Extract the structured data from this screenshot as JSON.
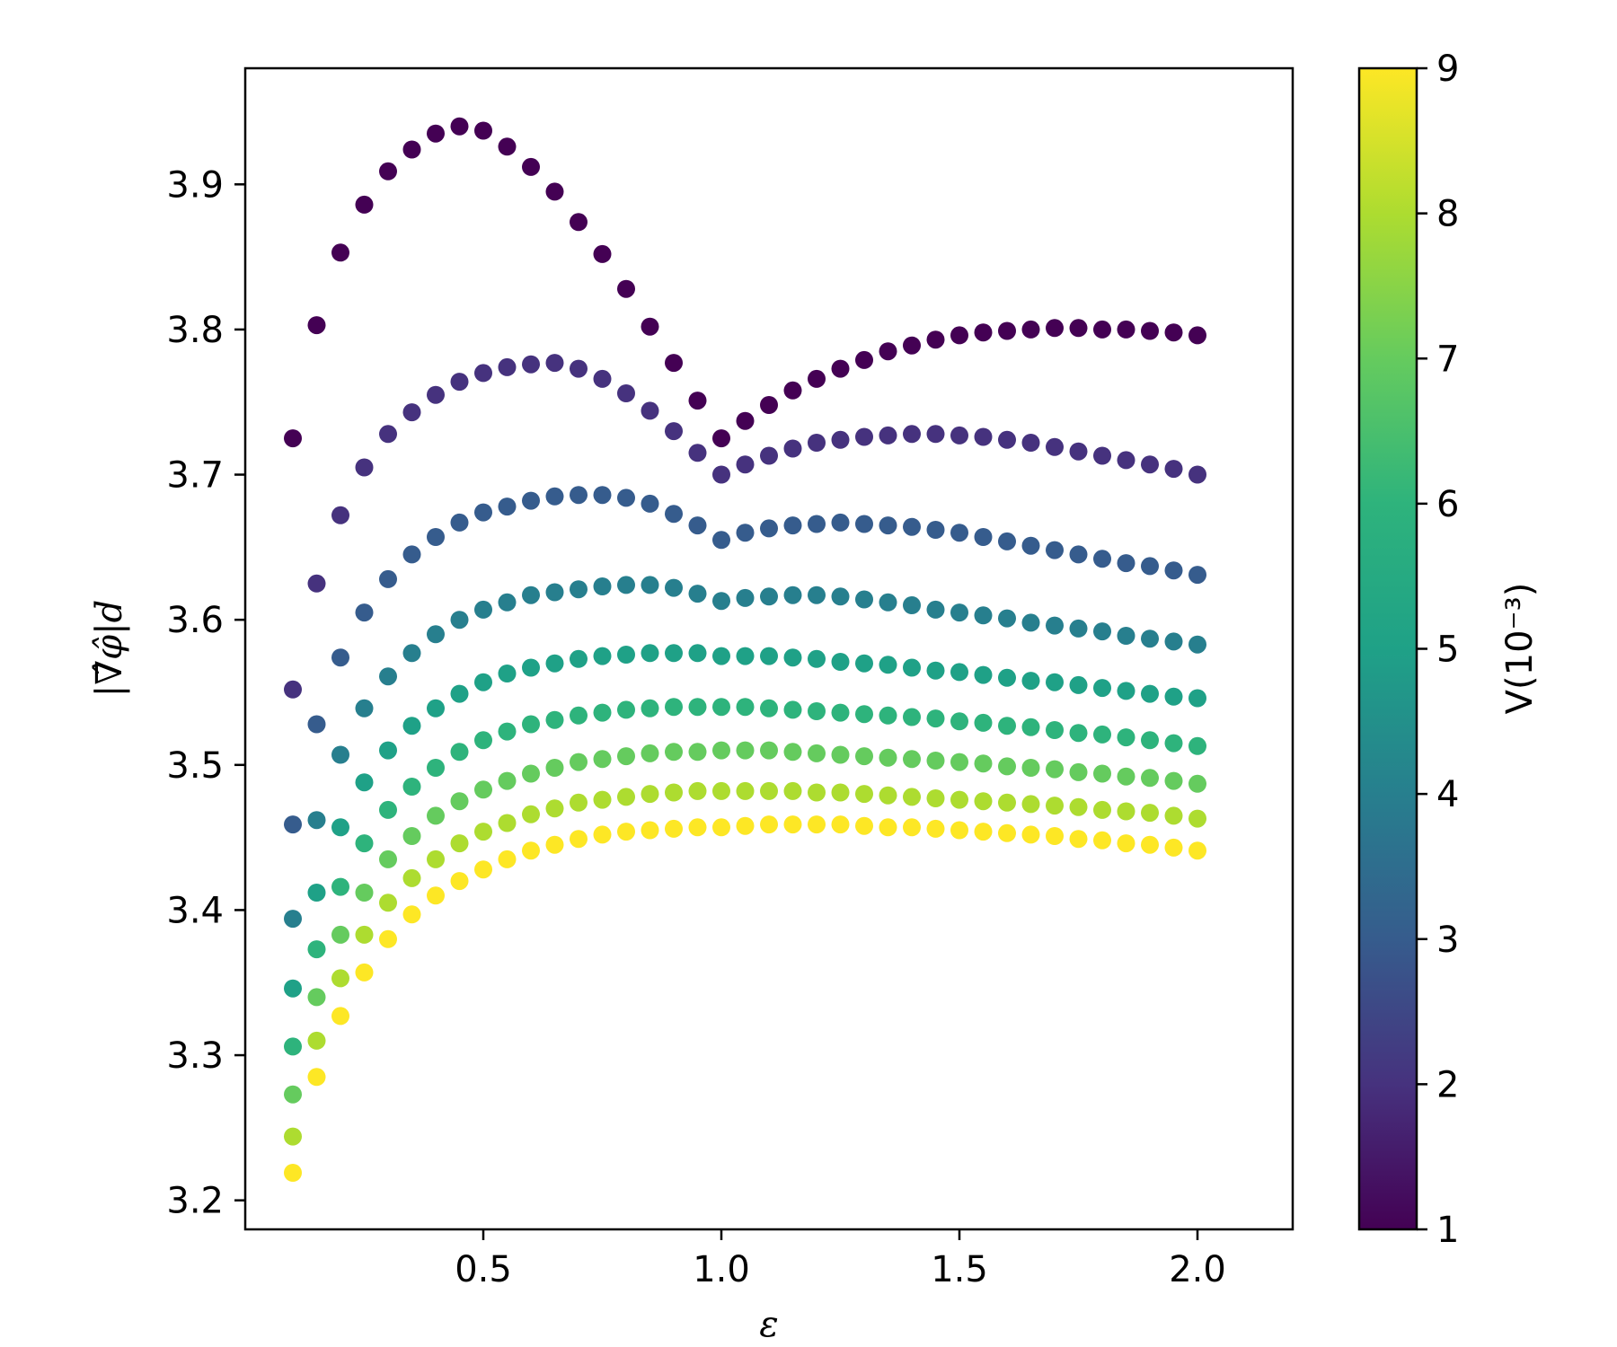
{
  "chart_data": {
    "type": "scatter",
    "xlabel": "ε",
    "ylabel": "|∇̂φ̂|d",
    "xlim": [
      0.0,
      2.2
    ],
    "ylim": [
      3.18,
      3.98
    ],
    "xticks": [
      "0.5",
      "1.0",
      "1.5",
      "2.0"
    ],
    "xtick_values": [
      0.5,
      1.0,
      1.5,
      2.0
    ],
    "yticks": [
      "3.2",
      "3.3",
      "3.4",
      "3.5",
      "3.6",
      "3.7",
      "3.8",
      "3.9"
    ],
    "ytick_values": [
      3.2,
      3.3,
      3.4,
      3.5,
      3.6,
      3.7,
      3.8,
      3.9
    ],
    "colorbar": {
      "label": "V(10⁻³)",
      "range": [
        1,
        9
      ],
      "ticks": [
        "1",
        "2",
        "3",
        "4",
        "5",
        "6",
        "7",
        "8",
        "9"
      ],
      "colormap": "viridis"
    },
    "x": [
      0.1,
      0.15,
      0.2,
      0.25,
      0.3,
      0.35,
      0.4,
      0.45,
      0.5,
      0.55,
      0.6,
      0.65,
      0.7,
      0.75,
      0.8,
      0.85,
      0.9,
      0.95,
      1.0,
      1.05,
      1.1,
      1.15,
      1.2,
      1.25,
      1.3,
      1.35,
      1.4,
      1.45,
      1.5,
      1.55,
      1.6,
      1.65,
      1.7,
      1.75,
      1.8,
      1.85,
      1.9,
      1.95,
      2.0
    ],
    "series": [
      {
        "V": 1,
        "color": "#440154",
        "values": [
          3.725,
          3.803,
          3.853,
          3.886,
          3.909,
          3.924,
          3.935,
          3.94,
          3.937,
          3.926,
          3.912,
          3.895,
          3.874,
          3.852,
          3.828,
          3.802,
          3.777,
          3.751,
          3.725,
          3.737,
          3.748,
          3.758,
          3.766,
          3.773,
          3.779,
          3.785,
          3.789,
          3.793,
          3.796,
          3.798,
          3.799,
          3.8,
          3.801,
          3.801,
          3.8,
          3.8,
          3.799,
          3.798,
          3.796
        ]
      },
      {
        "V": 2,
        "color": "#46327e",
        "values": [
          3.552,
          3.625,
          3.672,
          3.705,
          3.728,
          3.743,
          3.755,
          3.764,
          3.77,
          3.774,
          3.776,
          3.777,
          3.773,
          3.766,
          3.756,
          3.744,
          3.73,
          3.715,
          3.7,
          3.707,
          3.713,
          3.718,
          3.722,
          3.724,
          3.726,
          3.727,
          3.728,
          3.728,
          3.727,
          3.726,
          3.724,
          3.722,
          3.719,
          3.716,
          3.713,
          3.71,
          3.707,
          3.704,
          3.7
        ]
      },
      {
        "V": 3,
        "color": "#365c8d",
        "values": [
          3.459,
          3.528,
          3.574,
          3.605,
          3.628,
          3.645,
          3.657,
          3.667,
          3.674,
          3.678,
          3.682,
          3.685,
          3.686,
          3.686,
          3.684,
          3.68,
          3.673,
          3.665,
          3.655,
          3.66,
          3.663,
          3.665,
          3.666,
          3.667,
          3.666,
          3.665,
          3.664,
          3.662,
          3.66,
          3.657,
          3.654,
          3.651,
          3.648,
          3.645,
          3.642,
          3.639,
          3.637,
          3.634,
          3.631
        ]
      },
      {
        "V": 4,
        "color": "#277f8e",
        "values": [
          3.394,
          3.462,
          3.507,
          3.539,
          3.561,
          3.577,
          3.59,
          3.6,
          3.607,
          3.612,
          3.617,
          3.619,
          3.621,
          3.623,
          3.624,
          3.624,
          3.622,
          3.618,
          3.613,
          3.615,
          3.616,
          3.617,
          3.617,
          3.616,
          3.614,
          3.612,
          3.61,
          3.607,
          3.605,
          3.603,
          3.601,
          3.598,
          3.596,
          3.594,
          3.592,
          3.589,
          3.587,
          3.585,
          3.583
        ]
      },
      {
        "V": 5,
        "color": "#1fa187",
        "values": [
          3.346,
          3.412,
          3.457,
          3.488,
          3.51,
          3.527,
          3.539,
          3.549,
          3.557,
          3.563,
          3.567,
          3.57,
          3.573,
          3.575,
          3.576,
          3.577,
          3.577,
          3.577,
          3.575,
          3.575,
          3.575,
          3.574,
          3.573,
          3.571,
          3.57,
          3.569,
          3.567,
          3.565,
          3.564,
          3.562,
          3.56,
          3.558,
          3.557,
          3.555,
          3.553,
          3.551,
          3.549,
          3.547,
          3.546
        ]
      },
      {
        "V": 6,
        "color": "#2eb37c",
        "values": [
          3.306,
          3.373,
          3.416,
          3.446,
          3.469,
          3.485,
          3.498,
          3.509,
          3.517,
          3.523,
          3.528,
          3.531,
          3.534,
          3.536,
          3.538,
          3.539,
          3.54,
          3.54,
          3.54,
          3.54,
          3.539,
          3.538,
          3.537,
          3.536,
          3.535,
          3.534,
          3.533,
          3.532,
          3.53,
          3.529,
          3.527,
          3.526,
          3.524,
          3.522,
          3.521,
          3.519,
          3.517,
          3.515,
          3.513
        ]
      },
      {
        "V": 7,
        "color": "#65cb5e",
        "values": [
          3.273,
          3.34,
          3.383,
          3.412,
          3.435,
          3.451,
          3.465,
          3.475,
          3.483,
          3.489,
          3.494,
          3.498,
          3.502,
          3.504,
          3.506,
          3.508,
          3.509,
          3.509,
          3.51,
          3.51,
          3.51,
          3.509,
          3.508,
          3.507,
          3.506,
          3.505,
          3.504,
          3.503,
          3.502,
          3.501,
          3.499,
          3.498,
          3.497,
          3.495,
          3.494,
          3.492,
          3.491,
          3.489,
          3.487
        ]
      },
      {
        "V": 8,
        "color": "#addc30",
        "values": [
          3.244,
          3.31,
          3.353,
          3.383,
          3.405,
          3.422,
          3.435,
          3.446,
          3.454,
          3.46,
          3.466,
          3.47,
          3.474,
          3.476,
          3.478,
          3.48,
          3.481,
          3.482,
          3.482,
          3.482,
          3.482,
          3.482,
          3.481,
          3.481,
          3.48,
          3.479,
          3.478,
          3.477,
          3.476,
          3.475,
          3.474,
          3.473,
          3.472,
          3.471,
          3.469,
          3.468,
          3.467,
          3.465,
          3.463
        ]
      },
      {
        "V": 9,
        "color": "#fde725",
        "values": [
          3.219,
          3.285,
          3.327,
          3.357,
          3.38,
          3.397,
          3.41,
          3.42,
          3.428,
          3.435,
          3.441,
          3.445,
          3.449,
          3.452,
          3.454,
          3.455,
          3.456,
          3.457,
          3.457,
          3.458,
          3.459,
          3.459,
          3.459,
          3.459,
          3.458,
          3.457,
          3.457,
          3.456,
          3.455,
          3.454,
          3.453,
          3.452,
          3.451,
          3.449,
          3.448,
          3.446,
          3.445,
          3.443,
          3.441
        ]
      }
    ]
  }
}
